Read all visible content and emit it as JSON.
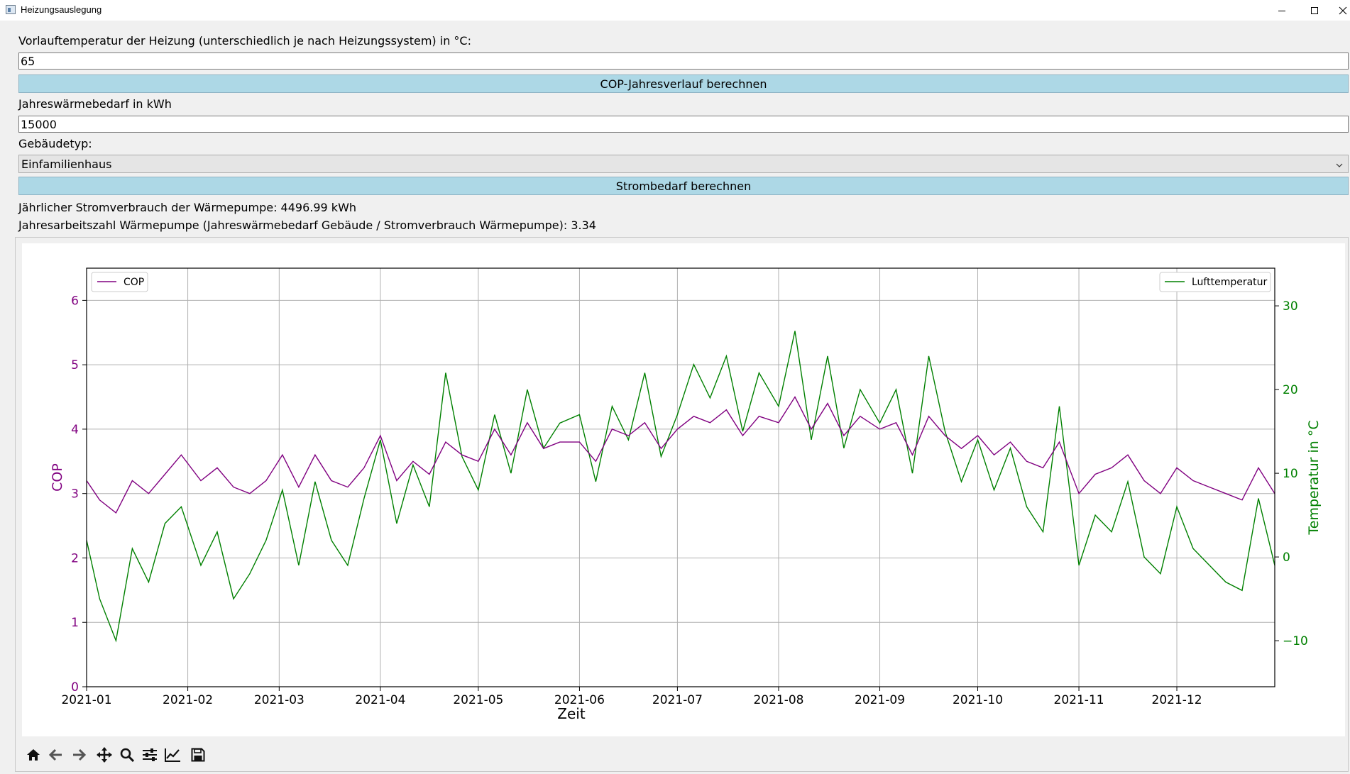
{
  "window": {
    "title": "Heizungsauslegung",
    "controls": [
      "minimize-icon",
      "maximize-icon",
      "close-icon"
    ]
  },
  "form": {
    "flow_temp_label": "Vorlauftemperatur der Heizung (unterschiedlich je nach Heizungssystem) in °C:",
    "flow_temp_value": "65",
    "cop_button_label": "COP-Jahresverlauf berechnen",
    "heat_demand_label": "Jahreswärmebedarf in kWh",
    "heat_demand_value": "15000",
    "building_type_label": "Gebäudetyp:",
    "building_type_value": "Einfamilienhaus",
    "power_button_label": "Strombedarf berechnen",
    "result_power": "Jährlicher Stromverbrauch der Wärmepumpe: 4496.99 kWh",
    "result_jaz": "Jahresarbeitszahl Wärmepumpe (Jahreswärmebedarf Gebäude / Stromverbrauch Wärmepumpe): 3.34"
  },
  "toolbar": {
    "icons": [
      "home-icon",
      "back-icon",
      "forward-icon",
      "pan-icon",
      "zoom-icon",
      "configure-subplots-icon",
      "edit-axis-icon",
      "save-icon"
    ]
  },
  "colors": {
    "accent_button": "#add8e6",
    "cop_series": "#800080",
    "temperature_series": "#008000"
  },
  "chart_data": {
    "type": "line",
    "xlabel": "Zeit",
    "x_ticks": [
      "2021-01",
      "2021-02",
      "2021-03",
      "2021-04",
      "2021-05",
      "2021-06",
      "2021-07",
      "2021-08",
      "2021-09",
      "2021-10",
      "2021-11",
      "2021-12"
    ],
    "x_range": [
      "2021-01-01",
      "2021-12-31"
    ],
    "left_axis": {
      "label": "COP",
      "ylim": [
        0,
        6.5
      ],
      "ticks": [
        0,
        1,
        2,
        3,
        4,
        5,
        6
      ],
      "color": "#800080"
    },
    "right_axis": {
      "label": "Temperatur in °C",
      "ylim": [
        -15.5,
        34.5
      ],
      "ticks": [
        -10,
        0,
        10,
        20,
        30
      ],
      "color": "#008000"
    },
    "grid": true,
    "legends": [
      {
        "text": "COP",
        "placement": "upper-left",
        "color": "#800080"
      },
      {
        "text": "Lufttemperatur",
        "placement": "upper-right",
        "color": "#008000"
      }
    ],
    "series": [
      {
        "name": "COP",
        "axis": "left",
        "dates": [
          "2021-01-01",
          "2021-01-05",
          "2021-01-10",
          "2021-01-15",
          "2021-01-20",
          "2021-01-25",
          "2021-01-30",
          "2021-02-05",
          "2021-02-10",
          "2021-02-15",
          "2021-02-20",
          "2021-02-25",
          "2021-03-02",
          "2021-03-07",
          "2021-03-12",
          "2021-03-17",
          "2021-03-22",
          "2021-03-27",
          "2021-04-01",
          "2021-04-06",
          "2021-04-11",
          "2021-04-16",
          "2021-04-21",
          "2021-04-26",
          "2021-05-01",
          "2021-05-06",
          "2021-05-11",
          "2021-05-16",
          "2021-05-21",
          "2021-05-26",
          "2021-06-01",
          "2021-06-06",
          "2021-06-11",
          "2021-06-16",
          "2021-06-21",
          "2021-06-26",
          "2021-07-01",
          "2021-07-06",
          "2021-07-11",
          "2021-07-16",
          "2021-07-21",
          "2021-07-26",
          "2021-08-01",
          "2021-08-06",
          "2021-08-11",
          "2021-08-16",
          "2021-08-21",
          "2021-08-26",
          "2021-09-01",
          "2021-09-06",
          "2021-09-11",
          "2021-09-16",
          "2021-09-21",
          "2021-09-26",
          "2021-10-01",
          "2021-10-06",
          "2021-10-11",
          "2021-10-16",
          "2021-10-21",
          "2021-10-26",
          "2021-11-01",
          "2021-11-06",
          "2021-11-11",
          "2021-11-16",
          "2021-11-21",
          "2021-11-26",
          "2021-12-01",
          "2021-12-06",
          "2021-12-11",
          "2021-12-16",
          "2021-12-21",
          "2021-12-26",
          "2021-12-31"
        ],
        "values": [
          3.2,
          2.9,
          2.7,
          3.2,
          3.0,
          3.3,
          3.6,
          3.2,
          3.4,
          3.1,
          3.0,
          3.2,
          3.6,
          3.1,
          3.6,
          3.2,
          3.1,
          3.4,
          3.9,
          3.2,
          3.5,
          3.3,
          3.8,
          3.6,
          3.5,
          4.0,
          3.6,
          4.1,
          3.7,
          3.8,
          3.8,
          3.5,
          4.0,
          3.9,
          4.1,
          3.7,
          4.0,
          4.2,
          4.1,
          4.3,
          3.9,
          4.2,
          4.1,
          4.5,
          4.0,
          4.4,
          3.9,
          4.2,
          4.0,
          4.1,
          3.6,
          4.2,
          3.9,
          3.7,
          3.9,
          3.6,
          3.8,
          3.5,
          3.4,
          3.8,
          3.0,
          3.3,
          3.4,
          3.6,
          3.2,
          3.0,
          3.4,
          3.2,
          3.1,
          3.0,
          2.9,
          3.4,
          3.0
        ]
      },
      {
        "name": "Lufttemperatur",
        "axis": "right",
        "dates": [
          "2021-01-01",
          "2021-01-05",
          "2021-01-10",
          "2021-01-15",
          "2021-01-20",
          "2021-01-25",
          "2021-01-30",
          "2021-02-05",
          "2021-02-10",
          "2021-02-15",
          "2021-02-20",
          "2021-02-25",
          "2021-03-02",
          "2021-03-07",
          "2021-03-12",
          "2021-03-17",
          "2021-03-22",
          "2021-03-27",
          "2021-04-01",
          "2021-04-06",
          "2021-04-11",
          "2021-04-16",
          "2021-04-21",
          "2021-04-26",
          "2021-05-01",
          "2021-05-06",
          "2021-05-11",
          "2021-05-16",
          "2021-05-21",
          "2021-05-26",
          "2021-06-01",
          "2021-06-06",
          "2021-06-11",
          "2021-06-16",
          "2021-06-21",
          "2021-06-26",
          "2021-07-01",
          "2021-07-06",
          "2021-07-11",
          "2021-07-16",
          "2021-07-21",
          "2021-07-26",
          "2021-08-01",
          "2021-08-06",
          "2021-08-11",
          "2021-08-16",
          "2021-08-21",
          "2021-08-26",
          "2021-09-01",
          "2021-09-06",
          "2021-09-11",
          "2021-09-16",
          "2021-09-21",
          "2021-09-26",
          "2021-10-01",
          "2021-10-06",
          "2021-10-11",
          "2021-10-16",
          "2021-10-21",
          "2021-10-26",
          "2021-11-01",
          "2021-11-06",
          "2021-11-11",
          "2021-11-16",
          "2021-11-21",
          "2021-11-26",
          "2021-12-01",
          "2021-12-06",
          "2021-12-11",
          "2021-12-16",
          "2021-12-21",
          "2021-12-26",
          "2021-12-31"
        ],
        "values": [
          2,
          -5,
          -10,
          1,
          -3,
          4,
          6,
          -1,
          3,
          -5,
          -2,
          2,
          8,
          -1,
          9,
          2,
          -1,
          7,
          14,
          4,
          11,
          6,
          22,
          12,
          8,
          17,
          10,
          20,
          13,
          16,
          17,
          9,
          18,
          14,
          22,
          12,
          17,
          23,
          19,
          24,
          15,
          22,
          18,
          27,
          14,
          24,
          13,
          20,
          16,
          20,
          10,
          24,
          15,
          9,
          14,
          8,
          13,
          6,
          3,
          18,
          -1,
          5,
          3,
          9,
          0,
          -2,
          6,
          1,
          -1,
          -3,
          -4,
          7,
          -1
        ]
      }
    ]
  }
}
